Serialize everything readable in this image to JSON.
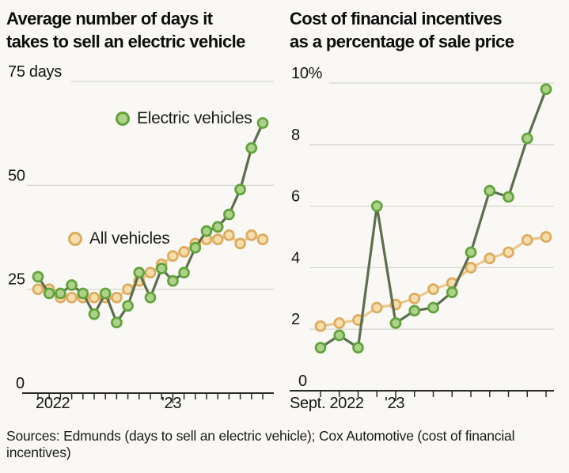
{
  "page": {
    "background": "#f9f8f4"
  },
  "colors": {
    "grid": "#d8d7d2",
    "axis": "#2a2a2a",
    "text": "#141414",
    "title": "#0d0d0d"
  },
  "source_note": "Sources: Edmunds (days to sell an electric vehicle); Cox Automotive (cost of financial incentives)",
  "chart_data": [
    {
      "type": "line",
      "title": "Average number of days it takes to sell an electric vehicle",
      "title_lines": [
        "Average number of days it",
        "takes to sell an electric vehicle"
      ],
      "xlabel": "",
      "ylabel": "days",
      "ylim": [
        0,
        75
      ],
      "grid": true,
      "legend_position": "inside-plot",
      "y_ticks": [
        {
          "value": 75,
          "label": "75 days"
        },
        {
          "value": 50,
          "label": "50"
        },
        {
          "value": 25,
          "label": "25"
        },
        {
          "value": 0,
          "label": "0"
        }
      ],
      "x_axis_labels": [
        {
          "month_index": 0,
          "label": "2022"
        },
        {
          "month_index": 12,
          "label": "'23"
        }
      ],
      "months": [
        "Jan 2022",
        "Feb",
        "Mar",
        "Apr",
        "May",
        "Jun",
        "Jul",
        "Aug",
        "Sep",
        "Oct",
        "Nov",
        "Dec",
        "Jan 2023",
        "Feb",
        "Mar",
        "Apr",
        "May",
        "Jun",
        "Jul",
        "Aug",
        "Sep"
      ],
      "series": [
        {
          "name": "Electric vehicles",
          "color": {
            "line": "#5d6e50",
            "marker_fill": "#aed289",
            "marker_stroke": "#61a23c"
          },
          "values": [
            28,
            24,
            24,
            26,
            24,
            19,
            24,
            17,
            21,
            29,
            23,
            30,
            27,
            29,
            35,
            39,
            40,
            43,
            49,
            59,
            65
          ]
        },
        {
          "name": "All vehicles",
          "color": {
            "line": "#ebc88e",
            "marker_fill": "#f5deab",
            "marker_stroke": "#ddab5f"
          },
          "values": [
            25,
            25,
            23,
            23,
            23,
            23,
            23,
            23,
            25,
            27,
            29,
            31,
            33,
            34,
            36,
            37,
            37,
            38,
            36,
            38,
            37
          ]
        }
      ]
    },
    {
      "type": "line",
      "title": "Cost of financial incentives as a percentage of sale price",
      "title_lines": [
        "Cost of financial incentives",
        "as a percentage of sale price"
      ],
      "xlabel": "",
      "ylabel": "percent of sale price",
      "ylim": [
        0,
        10
      ],
      "grid": true,
      "legend_position": "none",
      "y_ticks": [
        {
          "value": 10,
          "label": "10%"
        },
        {
          "value": 8,
          "label": "8"
        },
        {
          "value": 6,
          "label": "6"
        },
        {
          "value": 4,
          "label": "4"
        },
        {
          "value": 2,
          "label": "2"
        },
        {
          "value": 0,
          "label": "0"
        }
      ],
      "x_axis_labels": [
        {
          "month_index": 0,
          "label": "Sept. 2022"
        },
        {
          "month_index": 4,
          "label": "'23"
        }
      ],
      "months": [
        "Sep 2022",
        "Oct",
        "Nov",
        "Dec",
        "Jan 2023",
        "Feb",
        "Mar",
        "Apr",
        "May",
        "Jun",
        "Jul",
        "Aug",
        "Sep"
      ],
      "series": [
        {
          "name": "Electric vehicles",
          "color": {
            "line": "#5d6e50",
            "marker_fill": "#aed289",
            "marker_stroke": "#61a23c"
          },
          "values": [
            1.4,
            1.8,
            1.4,
            6.0,
            2.2,
            2.6,
            2.7,
            3.2,
            4.5,
            6.5,
            6.3,
            8.2,
            9.8
          ]
        },
        {
          "name": "All vehicles",
          "color": {
            "line": "#ebc88e",
            "marker_fill": "#f5deab",
            "marker_stroke": "#ddab5f"
          },
          "values": [
            2.1,
            2.2,
            2.3,
            2.7,
            2.8,
            3.0,
            3.3,
            3.5,
            4.0,
            4.3,
            4.5,
            4.9,
            5.0
          ]
        }
      ]
    }
  ]
}
